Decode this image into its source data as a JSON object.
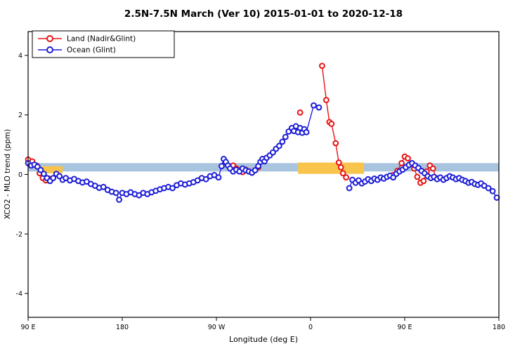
{
  "chart_data": {
    "type": "scatter",
    "title": "2.5N-7.5N March (Ver 10)   2015-01-01 to 2020-12-18",
    "xlabel": "Longitude (deg E)",
    "ylabel": "XCO2 - MLO trend (ppm)",
    "legend_position": "top-left",
    "grid": false,
    "x_axis": {
      "range": [
        0,
        450
      ],
      "ticks": [
        {
          "pos": 0,
          "label": "90 E"
        },
        {
          "pos": 90,
          "label": "180"
        },
        {
          "pos": 180,
          "label": "90 W"
        },
        {
          "pos": 270,
          "label": "0"
        },
        {
          "pos": 360,
          "label": "90 E"
        },
        {
          "pos": 450,
          "label": "180"
        }
      ],
      "note": "axis position in degrees along plot; wraps 90E -> 180 -> 90W -> 0 -> 90E -> 180"
    },
    "y_axis": {
      "range": [
        -4.8,
        4.8
      ],
      "ticks": [
        {
          "pos": -4,
          "label": "-4"
        },
        {
          "pos": -2,
          "label": "-2"
        },
        {
          "pos": 0,
          "label": "0"
        },
        {
          "pos": 2,
          "label": "2"
        },
        {
          "pos": 4,
          "label": "4"
        }
      ]
    },
    "reference_band": {
      "color": "#a9c4de",
      "x": [
        0,
        450
      ],
      "y": [
        0.1,
        0.38
      ]
    },
    "highlight_band": {
      "color": "#f9c44c",
      "segments": [
        {
          "x": [
            10,
            33
          ],
          "y": [
            0.04,
            0.28
          ]
        },
        {
          "x": [
            258,
            321
          ],
          "y": [
            0.02,
            0.4
          ]
        }
      ]
    },
    "series": [
      {
        "name": "Land (Nadir&Glint)",
        "color": "#e81414",
        "marker": "open-circle",
        "segments": [
          [
            [
              0,
              0.5
            ],
            [
              4,
              0.44
            ],
            [
              8,
              0.3
            ],
            [
              11,
              0.04
            ],
            [
              14,
              -0.12
            ],
            [
              17,
              -0.2
            ],
            [
              20,
              -0.14
            ]
          ],
          [
            [
              196,
              0.3
            ],
            [
              199,
              0.2
            ],
            [
              202,
              0.14
            ],
            [
              205,
              0.08
            ],
            [
              208,
              0.16
            ],
            [
              211,
              0.1
            ],
            [
              214,
              0.06
            ],
            [
              217,
              0.14
            ],
            [
              220,
              0.24
            ]
          ],
          [
            [
              260,
              2.08
            ]
          ],
          [
            [
              281,
              3.65
            ],
            [
              285,
              2.5
            ],
            [
              288,
              1.76
            ],
            [
              290,
              1.7
            ],
            [
              294,
              1.05
            ],
            [
              297,
              0.4
            ],
            [
              299,
              0.24
            ],
            [
              301,
              0.04
            ],
            [
              304,
              -0.1
            ]
          ],
          [
            [
              349,
              -0.02
            ],
            [
              353,
              0.12
            ],
            [
              357,
              0.38
            ],
            [
              360,
              0.6
            ],
            [
              363,
              0.54
            ],
            [
              366,
              0.36
            ],
            [
              369,
              0.2
            ],
            [
              372,
              -0.08
            ],
            [
              375,
              -0.28
            ],
            [
              378,
              -0.22
            ],
            [
              381,
              0.1
            ],
            [
              384,
              0.3
            ],
            [
              387,
              0.2
            ],
            [
              390,
              -0.12
            ]
          ]
        ]
      },
      {
        "name": "Ocean (Glint)",
        "color": "#1d1dd8",
        "marker": "open-circle",
        "segments": [
          [
            [
              0,
              0.38
            ],
            [
              3,
              0.3
            ],
            [
              6,
              0.33
            ],
            [
              9,
              0.26
            ],
            [
              12,
              0.15
            ],
            [
              15,
              0.02
            ],
            [
              18,
              -0.12
            ],
            [
              21,
              -0.22
            ],
            [
              24,
              -0.12
            ],
            [
              27,
              0.02
            ],
            [
              30,
              -0.06
            ],
            [
              33,
              -0.18
            ],
            [
              36,
              -0.12
            ],
            [
              40,
              -0.2
            ],
            [
              44,
              -0.15
            ],
            [
              48,
              -0.22
            ],
            [
              52,
              -0.27
            ],
            [
              56,
              -0.24
            ],
            [
              60,
              -0.32
            ],
            [
              64,
              -0.38
            ],
            [
              68,
              -0.45
            ],
            [
              72,
              -0.42
            ],
            [
              76,
              -0.52
            ],
            [
              80,
              -0.58
            ],
            [
              84,
              -0.62
            ],
            [
              87,
              -0.85
            ],
            [
              90,
              -0.62
            ],
            [
              94,
              -0.66
            ],
            [
              98,
              -0.6
            ],
            [
              102,
              -0.66
            ],
            [
              106,
              -0.7
            ],
            [
              110,
              -0.62
            ],
            [
              114,
              -0.66
            ],
            [
              118,
              -0.6
            ],
            [
              122,
              -0.55
            ],
            [
              126,
              -0.5
            ],
            [
              130,
              -0.46
            ],
            [
              134,
              -0.42
            ],
            [
              138,
              -0.46
            ],
            [
              142,
              -0.36
            ],
            [
              146,
              -0.3
            ],
            [
              150,
              -0.34
            ],
            [
              154,
              -0.3
            ],
            [
              158,
              -0.26
            ],
            [
              162,
              -0.2
            ],
            [
              166,
              -0.12
            ],
            [
              170,
              -0.16
            ],
            [
              174,
              -0.06
            ],
            [
              178,
              -0.02
            ],
            [
              182,
              -0.1
            ],
            [
              185,
              0.28
            ],
            [
              187,
              0.52
            ],
            [
              189,
              0.42
            ],
            [
              191,
              0.3
            ],
            [
              193,
              0.2
            ],
            [
              196,
              0.1
            ],
            [
              199,
              0.16
            ],
            [
              202,
              0.1
            ],
            [
              205,
              0.2
            ],
            [
              208,
              0.14
            ],
            [
              211,
              0.1
            ],
            [
              214,
              0.06
            ],
            [
              217,
              0.14
            ],
            [
              220,
              0.28
            ],
            [
              222,
              0.42
            ],
            [
              224,
              0.52
            ],
            [
              226,
              0.44
            ],
            [
              228,
              0.56
            ],
            [
              231,
              0.64
            ],
            [
              234,
              0.74
            ],
            [
              237,
              0.86
            ],
            [
              240,
              0.96
            ],
            [
              243,
              1.1
            ],
            [
              246,
              1.26
            ],
            [
              249,
              1.44
            ],
            [
              252,
              1.56
            ],
            [
              254,
              1.46
            ],
            [
              256,
              1.62
            ],
            [
              258,
              1.42
            ],
            [
              260,
              1.56
            ],
            [
              262,
              1.4
            ],
            [
              264,
              1.52
            ],
            [
              266,
              1.42
            ],
            [
              273,
              2.32
            ],
            [
              278,
              2.25
            ]
          ],
          [
            [
              307,
              -0.46
            ],
            [
              310,
              -0.18
            ],
            [
              313,
              -0.28
            ],
            [
              316,
              -0.2
            ],
            [
              319,
              -0.3
            ],
            [
              322,
              -0.24
            ],
            [
              325,
              -0.16
            ],
            [
              328,
              -0.22
            ],
            [
              331,
              -0.14
            ],
            [
              334,
              -0.18
            ],
            [
              337,
              -0.1
            ],
            [
              340,
              -0.14
            ],
            [
              343,
              -0.08
            ],
            [
              346,
              -0.04
            ],
            [
              349,
              -0.1
            ],
            [
              352,
              0.02
            ],
            [
              355,
              0.1
            ],
            [
              358,
              0.16
            ],
            [
              361,
              0.24
            ],
            [
              364,
              0.32
            ],
            [
              367,
              0.38
            ],
            [
              370,
              0.3
            ],
            [
              373,
              0.22
            ],
            [
              376,
              0.12
            ],
            [
              379,
              0.04
            ],
            [
              382,
              -0.06
            ],
            [
              385,
              -0.12
            ],
            [
              388,
              -0.08
            ],
            [
              391,
              -0.16
            ],
            [
              394,
              -0.1
            ],
            [
              397,
              -0.18
            ],
            [
              400,
              -0.12
            ],
            [
              403,
              -0.06
            ],
            [
              406,
              -0.1
            ],
            [
              409,
              -0.16
            ],
            [
              412,
              -0.12
            ],
            [
              415,
              -0.18
            ],
            [
              418,
              -0.22
            ],
            [
              421,
              -0.28
            ],
            [
              424,
              -0.25
            ],
            [
              427,
              -0.32
            ],
            [
              430,
              -0.35
            ],
            [
              433,
              -0.3
            ],
            [
              436,
              -0.38
            ],
            [
              440,
              -0.46
            ],
            [
              444,
              -0.56
            ],
            [
              448,
              -0.78
            ]
          ]
        ]
      }
    ]
  }
}
